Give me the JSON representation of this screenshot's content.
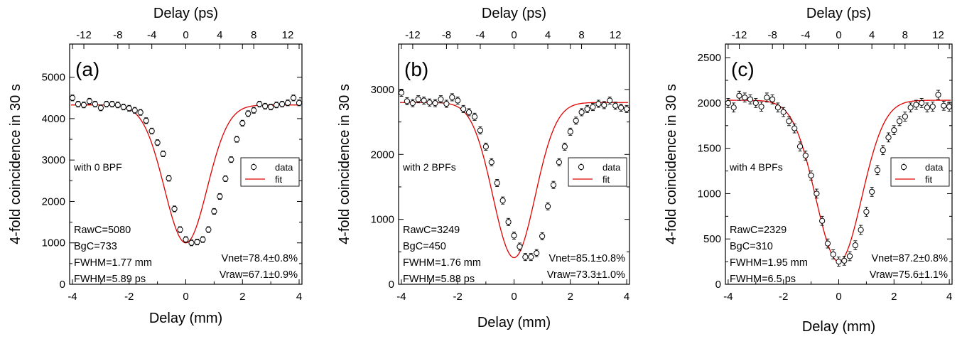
{
  "chart_data": [
    {
      "type": "scatter",
      "panel_label": "(a)",
      "note": "with 0 BPF",
      "top_axis_label": "Delay (ps)",
      "xlabel": "Delay (mm)",
      "ylabel": "4-fold coincidence in 30 s",
      "xlim": [
        -4.1,
        4.1
      ],
      "ylim": [
        0,
        5800
      ],
      "xticks": [
        -4,
        -2,
        0,
        2,
        4
      ],
      "yticks": [
        0,
        1000,
        2000,
        3000,
        4000,
        5000
      ],
      "top_ticks": [
        -12,
        -8,
        -4,
        0,
        4,
        8,
        12
      ],
      "legend": {
        "data_label": "data",
        "fit_label": "fit",
        "position": "right"
      },
      "stats_left": [
        "RawC=5080",
        "BgC=733",
        "FWHM=1.77 mm",
        "FWHM=5.89 ps"
      ],
      "stats_right": [
        "Vnet=78.4±0.8%",
        "Vraw=67.1±0.9%"
      ],
      "fit": {
        "baseline": 4330,
        "min": 1000,
        "center": 0.0,
        "fwhm_mm": 1.77
      },
      "series": [
        {
          "name": "data",
          "marker": "open-circle",
          "error": 70,
          "x": [
            -4.0,
            -3.8,
            -3.6,
            -3.4,
            -3.2,
            -3.0,
            -2.8,
            -2.6,
            -2.4,
            -2.2,
            -2.0,
            -1.8,
            -1.6,
            -1.4,
            -1.2,
            -1.0,
            -0.8,
            -0.6,
            -0.4,
            -0.2,
            0.0,
            0.2,
            0.4,
            0.6,
            0.8,
            1.0,
            1.2,
            1.4,
            1.6,
            1.8,
            2.0,
            2.2,
            2.4,
            2.6,
            2.8,
            3.0,
            3.2,
            3.4,
            3.6,
            3.8,
            4.0
          ],
          "y": [
            4500,
            4350,
            4330,
            4420,
            4350,
            4260,
            4350,
            4350,
            4330,
            4280,
            4250,
            4200,
            4150,
            3950,
            3700,
            3420,
            3150,
            2560,
            1820,
            1320,
            1080,
            1000,
            1020,
            1080,
            1320,
            1760,
            2120,
            2550,
            3010,
            3500,
            3890,
            4120,
            4200,
            4350,
            4300,
            4280,
            4330,
            4350,
            4380,
            4500,
            4380
          ]
        }
      ]
    },
    {
      "type": "scatter",
      "panel_label": "(b)",
      "note": "with 2 BPFs",
      "top_axis_label": "Delay (ps)",
      "xlabel": "Delay (mm)",
      "ylabel": "4-fold coincidence in 30 s",
      "xlim": [
        -4.1,
        4.1
      ],
      "ylim": [
        0,
        3700
      ],
      "xticks": [
        -4,
        -2,
        0,
        2,
        4
      ],
      "yticks": [
        0,
        1000,
        2000,
        3000
      ],
      "top_ticks": [
        -12,
        -8,
        -4,
        0,
        4,
        8,
        12
      ],
      "legend": {
        "data_label": "data",
        "fit_label": "fit",
        "position": "right"
      },
      "stats_left": [
        "RawC=3249",
        "BgC=450",
        "FWHM=1.76 mm",
        "FWHM=5.88 ps"
      ],
      "stats_right": [
        "Vnet=85.1±0.8%",
        "Vraw=73.3±1.0%"
      ],
      "fit": {
        "baseline": 2800,
        "min": 410,
        "center": 0.0,
        "fwhm_mm": 1.76
      },
      "series": [
        {
          "name": "data",
          "marker": "open-circle",
          "error": 55,
          "x": [
            -4.0,
            -3.8,
            -3.6,
            -3.4,
            -3.2,
            -3.0,
            -2.8,
            -2.6,
            -2.4,
            -2.2,
            -2.0,
            -1.8,
            -1.6,
            -1.4,
            -1.2,
            -1.0,
            -0.8,
            -0.6,
            -0.4,
            -0.2,
            0.0,
            0.2,
            0.4,
            0.6,
            0.8,
            1.0,
            1.2,
            1.4,
            1.6,
            1.8,
            2.0,
            2.2,
            2.4,
            2.6,
            2.8,
            3.0,
            3.2,
            3.4,
            3.6,
            3.8,
            4.0
          ],
          "y": [
            2950,
            2820,
            2790,
            2850,
            2830,
            2800,
            2790,
            2850,
            2780,
            2880,
            2830,
            2700,
            2650,
            2580,
            2370,
            2120,
            1880,
            1560,
            1290,
            960,
            750,
            580,
            420,
            420,
            480,
            740,
            1200,
            1530,
            1880,
            2120,
            2350,
            2520,
            2650,
            2700,
            2730,
            2780,
            2760,
            2830,
            2750,
            2720,
            2700
          ]
        }
      ]
    },
    {
      "type": "scatter",
      "panel_label": "(c)",
      "note": "with 4 BPFs",
      "top_axis_label": "Delay (ps)",
      "xlabel": "Delay (mm)",
      "ylabel": "4-fold coincidence in 30 s",
      "xlim": [
        -4.1,
        4.1
      ],
      "ylim": [
        0,
        2650
      ],
      "xticks": [
        -4,
        -2,
        0,
        2,
        4
      ],
      "yticks": [
        0,
        500,
        1000,
        1500,
        2000,
        2500
      ],
      "top_ticks": [
        -12,
        -8,
        -4,
        0,
        4,
        8,
        12
      ],
      "legend": {
        "data_label": "data",
        "fit_label": "fit",
        "position": "right"
      },
      "stats_left": [
        "RawC=2329",
        "BgC=310",
        "FWHM=1.95 mm",
        "FWHM=6.5 ps"
      ],
      "stats_right": [
        "Vnet=87.2±0.8%",
        "Vraw=75.6±1.1%"
      ],
      "fit": {
        "baseline": 2030,
        "min": 250,
        "center": 0.0,
        "fwhm_mm": 1.95
      },
      "series": [
        {
          "name": "data",
          "marker": "open-circle",
          "error": 50,
          "x": [
            -4.0,
            -3.8,
            -3.6,
            -3.4,
            -3.2,
            -3.0,
            -2.8,
            -2.6,
            -2.4,
            -2.2,
            -2.0,
            -1.8,
            -1.6,
            -1.4,
            -1.2,
            -1.0,
            -0.8,
            -0.6,
            -0.4,
            -0.2,
            0.0,
            0.2,
            0.4,
            0.6,
            0.8,
            1.0,
            1.2,
            1.4,
            1.6,
            1.8,
            2.0,
            2.2,
            2.4,
            2.6,
            2.8,
            3.0,
            3.2,
            3.4,
            3.6,
            3.8,
            4.0
          ],
          "y": [
            2000,
            1950,
            2080,
            2060,
            2040,
            2000,
            1960,
            2060,
            2040,
            1950,
            1900,
            1800,
            1720,
            1520,
            1420,
            1200,
            1000,
            700,
            450,
            330,
            250,
            260,
            310,
            430,
            600,
            800,
            1020,
            1260,
            1480,
            1620,
            1700,
            1800,
            1850,
            1950,
            1980,
            2000,
            1950,
            1960,
            2090,
            1970,
            1960
          ]
        }
      ]
    }
  ]
}
